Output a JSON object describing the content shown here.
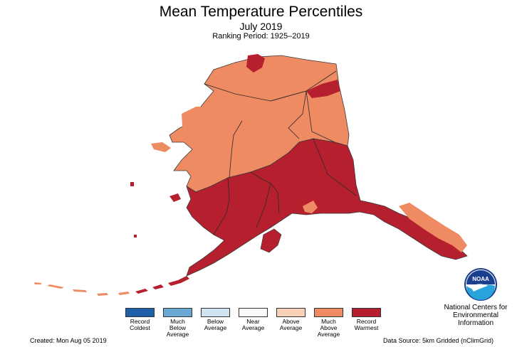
{
  "header": {
    "title": "Mean Temperature Percentiles",
    "subtitle": "July 2019",
    "ranking_period": "Ranking Period: 1925–2019"
  },
  "colors": {
    "record_coldest": "#1f5fa8",
    "much_below": "#6aa9d3",
    "below": "#cfe3f0",
    "near": "#fafafa",
    "above": "#f8cfb7",
    "much_above": "#ef8b63",
    "record_warmest": "#b51f2e",
    "border": "#3a3a3a"
  },
  "legend": [
    {
      "label": "Record\nColdest",
      "color": "#1f5fa8"
    },
    {
      "label": "Much\nBelow\nAverage",
      "color": "#6aa9d3"
    },
    {
      "label": "Below\nAverage",
      "color": "#cfe3f0"
    },
    {
      "label": "Near\nAverage",
      "color": "#fafafa"
    },
    {
      "label": "Above\nAverage",
      "color": "#f8cfb7"
    },
    {
      "label": "Much\nAbove\nAverage",
      "color": "#ef8b63"
    },
    {
      "label": "Record\nWarmest",
      "color": "#b51f2e"
    }
  ],
  "footer": {
    "created": "Created: Mon Aug 05 2019",
    "source": "Data Source: 5km Gridded (nClimGrid)"
  },
  "agency": {
    "name": "National Centers for\nEnvironmental\nInformation",
    "logo_text": "NOAA"
  }
}
